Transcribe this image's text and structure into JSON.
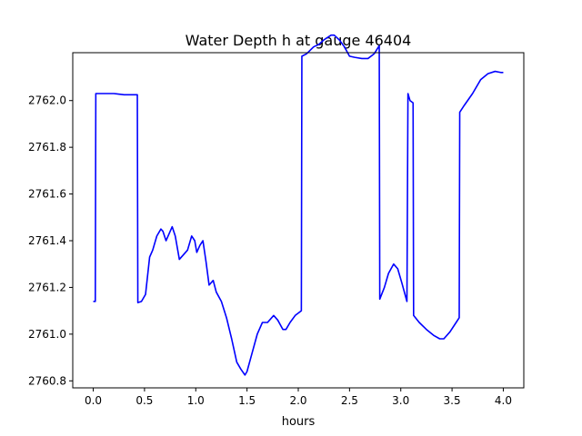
{
  "chart_data": {
    "type": "line",
    "title": "Water Depth h at gauge 46404",
    "xlabel": "hours",
    "ylabel": "",
    "xlim": [
      -0.2,
      4.2
    ],
    "ylim": [
      2760.77,
      2762.205
    ],
    "xticks": [
      0.0,
      0.5,
      1.0,
      1.5,
      2.0,
      2.5,
      3.0,
      3.5,
      4.0
    ],
    "xtick_labels": [
      "0.0",
      "0.5",
      "1.0",
      "1.5",
      "2.0",
      "2.5",
      "3.0",
      "3.5",
      "4.0"
    ],
    "yticks": [
      2760.8,
      2761.0,
      2761.2,
      2761.4,
      2761.6,
      2761.8,
      2762.0
    ],
    "ytick_labels": [
      "2760.8",
      "2761.0",
      "2761.2",
      "2761.4",
      "2761.6",
      "2761.8",
      "2762.0"
    ],
    "grid": false,
    "legend": "none",
    "series": [
      {
        "color": "#0000ff",
        "points": [
          [
            0.0,
            2761.14
          ],
          [
            0.02,
            2761.14
          ],
          [
            0.025,
            2762.03
          ],
          [
            0.1,
            2762.03
          ],
          [
            0.2,
            2762.03
          ],
          [
            0.3,
            2762.025
          ],
          [
            0.43,
            2762.025
          ],
          [
            0.435,
            2761.135
          ],
          [
            0.47,
            2761.14
          ],
          [
            0.51,
            2761.17
          ],
          [
            0.55,
            2761.33
          ],
          [
            0.58,
            2761.36
          ],
          [
            0.62,
            2761.42
          ],
          [
            0.66,
            2761.45
          ],
          [
            0.68,
            2761.44
          ],
          [
            0.71,
            2761.4
          ],
          [
            0.74,
            2761.43
          ],
          [
            0.77,
            2761.46
          ],
          [
            0.8,
            2761.42
          ],
          [
            0.84,
            2761.32
          ],
          [
            0.88,
            2761.34
          ],
          [
            0.92,
            2761.36
          ],
          [
            0.96,
            2761.42
          ],
          [
            0.99,
            2761.4
          ],
          [
            1.01,
            2761.35
          ],
          [
            1.04,
            2761.38
          ],
          [
            1.07,
            2761.4
          ],
          [
            1.1,
            2761.31
          ],
          [
            1.13,
            2761.21
          ],
          [
            1.17,
            2761.23
          ],
          [
            1.2,
            2761.18
          ],
          [
            1.25,
            2761.14
          ],
          [
            1.3,
            2761.07
          ],
          [
            1.35,
            2760.98
          ],
          [
            1.4,
            2760.88
          ],
          [
            1.44,
            2760.85
          ],
          [
            1.48,
            2760.825
          ],
          [
            1.5,
            2760.84
          ],
          [
            1.55,
            2760.92
          ],
          [
            1.6,
            2761.0
          ],
          [
            1.65,
            2761.05
          ],
          [
            1.7,
            2761.05
          ],
          [
            1.76,
            2761.08
          ],
          [
            1.8,
            2761.06
          ],
          [
            1.85,
            2761.02
          ],
          [
            1.88,
            2761.02
          ],
          [
            1.92,
            2761.05
          ],
          [
            1.97,
            2761.08
          ],
          [
            2.03,
            2761.1
          ],
          [
            2.035,
            2762.19
          ],
          [
            2.08,
            2762.2
          ],
          [
            2.15,
            2762.23
          ],
          [
            2.2,
            2762.24
          ],
          [
            2.25,
            2762.26
          ],
          [
            2.32,
            2762.28
          ],
          [
            2.35,
            2762.28
          ],
          [
            2.4,
            2762.26
          ],
          [
            2.45,
            2762.23
          ],
          [
            2.5,
            2762.19
          ],
          [
            2.55,
            2762.185
          ],
          [
            2.62,
            2762.18
          ],
          [
            2.68,
            2762.18
          ],
          [
            2.74,
            2762.2
          ],
          [
            2.79,
            2762.235
          ],
          [
            2.795,
            2761.15
          ],
          [
            2.84,
            2761.2
          ],
          [
            2.88,
            2761.26
          ],
          [
            2.93,
            2761.3
          ],
          [
            2.97,
            2761.28
          ],
          [
            3.01,
            2761.22
          ],
          [
            3.06,
            2761.14
          ],
          [
            3.07,
            2762.03
          ],
          [
            3.09,
            2762.0
          ],
          [
            3.12,
            2761.99
          ],
          [
            3.125,
            2761.08
          ],
          [
            3.18,
            2761.05
          ],
          [
            3.25,
            2761.02
          ],
          [
            3.32,
            2760.995
          ],
          [
            3.38,
            2760.98
          ],
          [
            3.42,
            2760.98
          ],
          [
            3.48,
            2761.01
          ],
          [
            3.54,
            2761.05
          ],
          [
            3.57,
            2761.07
          ],
          [
            3.575,
            2761.95
          ],
          [
            3.62,
            2761.98
          ],
          [
            3.7,
            2762.03
          ],
          [
            3.78,
            2762.09
          ],
          [
            3.85,
            2762.115
          ],
          [
            3.92,
            2762.125
          ],
          [
            3.98,
            2762.12
          ],
          [
            4.0,
            2762.12
          ]
        ]
      }
    ]
  }
}
